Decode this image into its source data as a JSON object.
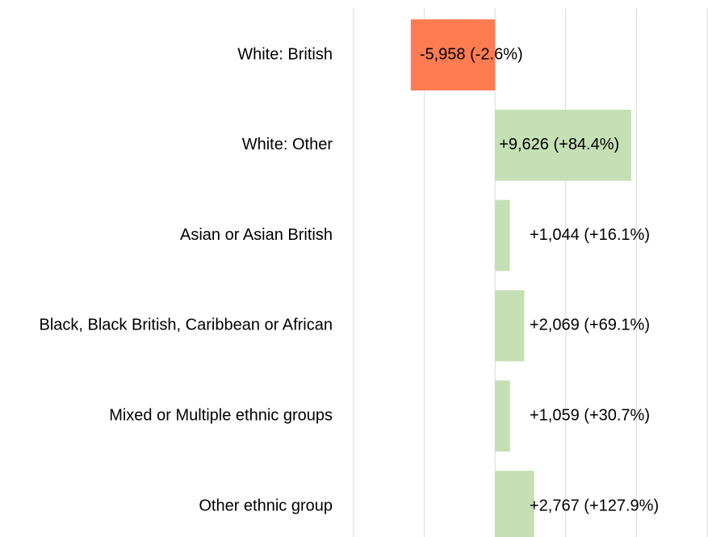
{
  "chart_data": {
    "type": "bar",
    "orientation": "horizontal",
    "categories": [
      "White: British",
      "White: Other",
      "Asian or Asian British",
      "Black, Black British, Caribbean or African",
      "Mixed or Multiple ethnic groups",
      "Other ethnic group"
    ],
    "values": [
      -5958,
      9626,
      1044,
      2069,
      1059,
      2767
    ],
    "value_labels": [
      "-5,958 (-2.6%)",
      "+9,626 (+84.4%)",
      "+1,044 (+16.1%)",
      "+2,069 (+69.1%)",
      "+1,059 (+30.7%)",
      "+2,767 (+127.9%)"
    ],
    "positive_color": "#c5e0b4",
    "negative_color": "#ff7b52",
    "xlim": [
      -10000,
      15000
    ],
    "xticks": [
      -10000,
      -5000,
      0,
      5000,
      10000,
      15000
    ],
    "grid": true
  }
}
